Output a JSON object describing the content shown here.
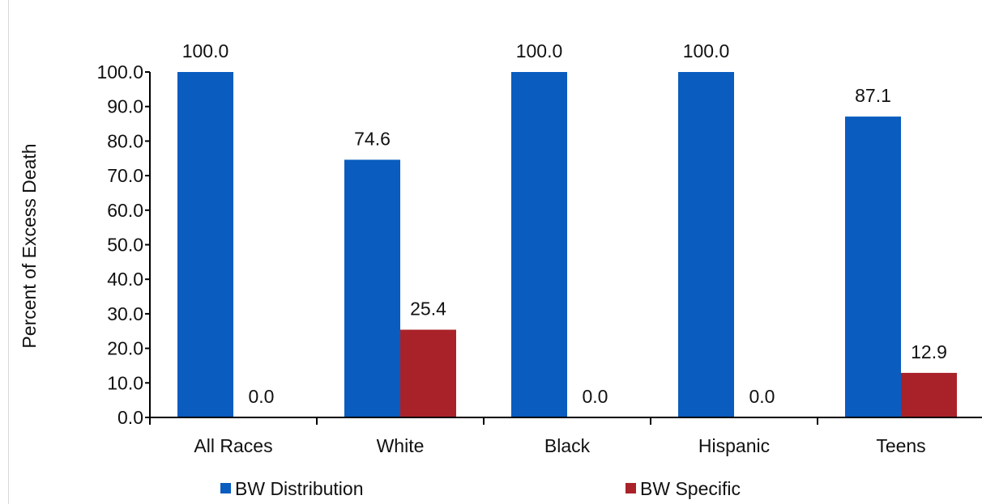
{
  "chart_data": {
    "type": "bar",
    "title": "",
    "xlabel": "",
    "ylabel": "Percent of Excess Death",
    "ylim": [
      0,
      100
    ],
    "yticks": [
      "0.0",
      "10.0",
      "20.0",
      "30.0",
      "40.0",
      "50.0",
      "60.0",
      "70.0",
      "80.0",
      "90.0",
      "100.0"
    ],
    "categories": [
      "All Races",
      "White",
      "Black",
      "Hispanic",
      "Teens"
    ],
    "series": [
      {
        "name": "BW Distribution",
        "color": "#0a5cbf",
        "values": [
          100.0,
          74.6,
          100.0,
          100.0,
          87.1
        ],
        "labels": [
          "100.0",
          "74.6",
          "100.0",
          "100.0",
          "87.1"
        ]
      },
      {
        "name": "BW Specific",
        "color": "#aa2229",
        "values": [
          0.0,
          25.4,
          0.0,
          0.0,
          12.9
        ],
        "labels": [
          "0.0",
          "25.4",
          "0.0",
          "0.0",
          "12.9"
        ]
      }
    ],
    "grid": false,
    "legend_position": "bottom"
  }
}
